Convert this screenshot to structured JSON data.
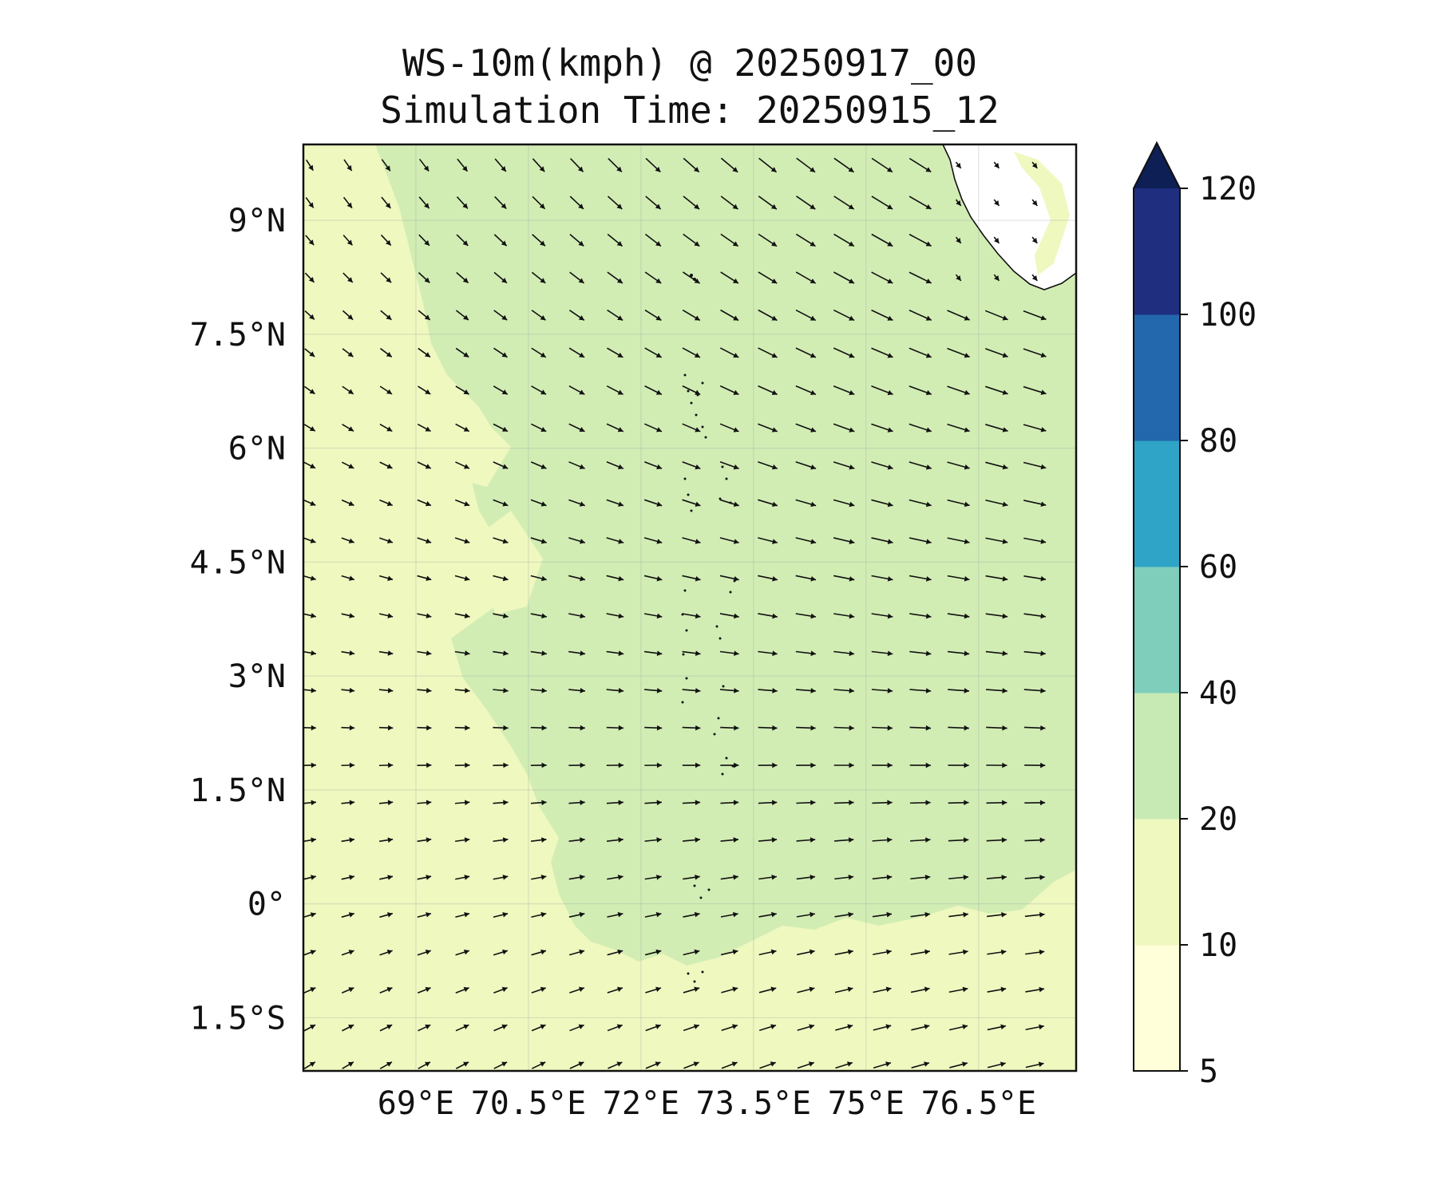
{
  "title": {
    "line1": "WS-10m(kmph) @ 20250917_00",
    "line2": "Simulation Time: 20250915_12"
  },
  "map": {
    "lon_range": [
      67.5,
      77.8
    ],
    "lat_range": [
      -2.2,
      10.0
    ],
    "x_ticks": [
      {
        "value": 69,
        "label": "69°E"
      },
      {
        "value": 70.5,
        "label": "70.5°E"
      },
      {
        "value": 72,
        "label": "72°E"
      },
      {
        "value": 73.5,
        "label": "73.5°E"
      },
      {
        "value": 75,
        "label": "75°E"
      },
      {
        "value": 76.5,
        "label": "76.5°E"
      }
    ],
    "y_ticks": [
      {
        "value": 9,
        "label": "9°N"
      },
      {
        "value": 7.5,
        "label": "7.5°N"
      },
      {
        "value": 6,
        "label": "6°N"
      },
      {
        "value": 4.5,
        "label": "4.5°N"
      },
      {
        "value": 3,
        "label": "3°N"
      },
      {
        "value": 1.5,
        "label": "1.5°N"
      },
      {
        "value": 0,
        "label": "0°"
      },
      {
        "value": -1.5,
        "label": "1.5°S"
      }
    ],
    "grid": true,
    "field_colors": {
      "5-10": "#ffffd9",
      "10-20": "#eff8bf",
      "20-40": "#d2edb4",
      "no-data": "#ffffff"
    }
  },
  "colorbar": {
    "extend": "max",
    "bins": [
      {
        "from": 5,
        "to": 10,
        "color": "#ffffd9"
      },
      {
        "from": 10,
        "to": 20,
        "color": "#eff8bf"
      },
      {
        "from": 20,
        "to": 40,
        "color": "#c7e9b4"
      },
      {
        "from": 40,
        "to": 60,
        "color": "#7fcdbb"
      },
      {
        "from": 60,
        "to": 80,
        "color": "#2fa4c6"
      },
      {
        "from": 80,
        "to": 100,
        "color": "#2367ac"
      },
      {
        "from": 100,
        "to": 120,
        "color": "#1f2e7e"
      }
    ],
    "extend_color": "#0d1f54",
    "ticks": [
      {
        "value": 120,
        "label": "120"
      },
      {
        "value": 100,
        "label": "100"
      },
      {
        "value": 80,
        "label": "80"
      },
      {
        "value": 60,
        "label": "60"
      },
      {
        "value": 40,
        "label": "40"
      },
      {
        "value": 20,
        "label": "20"
      },
      {
        "value": 10,
        "label": "10"
      },
      {
        "value": 5,
        "label": "5"
      }
    ]
  }
}
